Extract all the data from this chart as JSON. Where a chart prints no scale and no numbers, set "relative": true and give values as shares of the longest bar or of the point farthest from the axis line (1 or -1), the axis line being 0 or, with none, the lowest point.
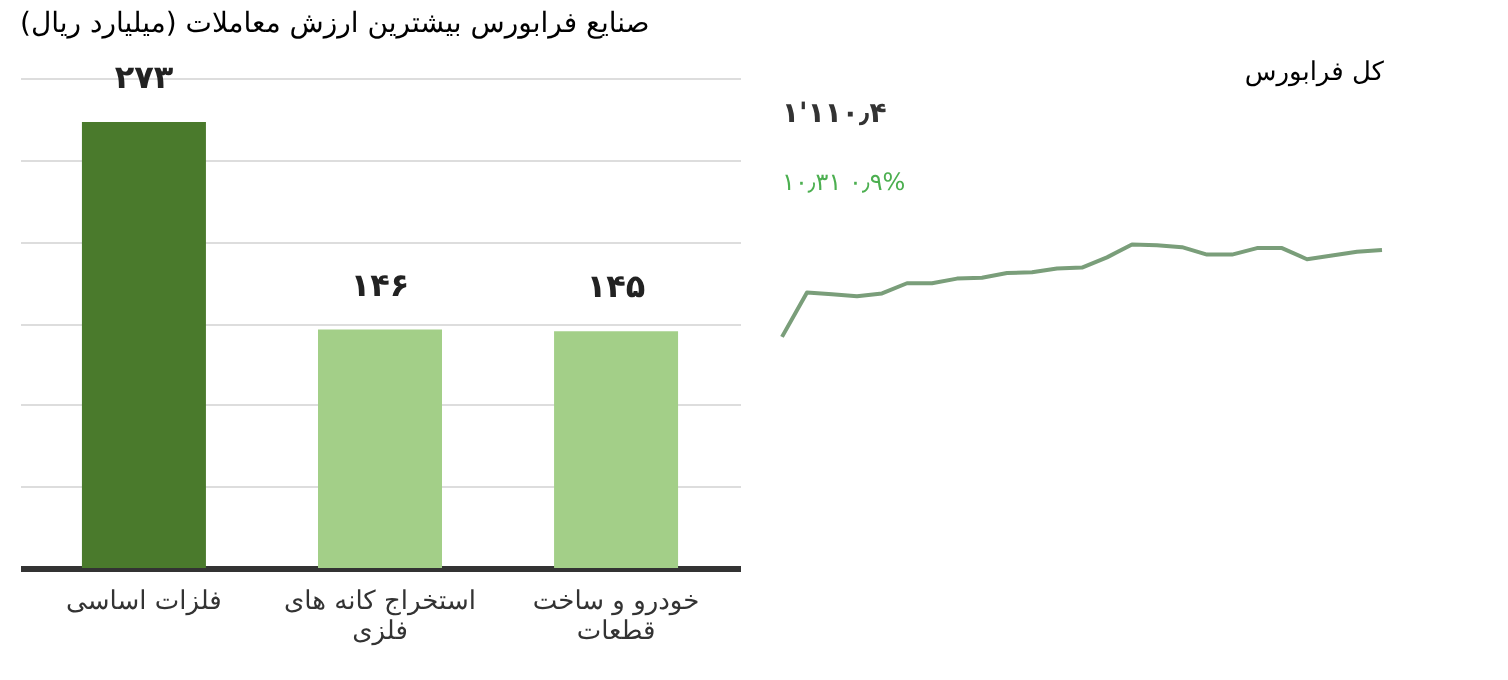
{
  "chart_data": [
    {
      "type": "bar",
      "title": "صنایع فرابورس بیشترین ارزش معاملات (میلیارد ریال)",
      "categories": [
        "فلزات اساسی",
        "استخراج کانه های فلزی",
        "خودرو و ساخت قطعات"
      ],
      "values": [
        273,
        146,
        145
      ],
      "colors": [
        "#4a7a2c",
        "#a3cf88",
        "#a3cf88"
      ],
      "value_labels": [
        "۲۷۳",
        "۱۴۶",
        "۱۴۵"
      ],
      "ylim": [
        0,
        300
      ],
      "yticks": [
        {
          "value": 0,
          "label": null
        },
        {
          "value": 50,
          "label": null
        },
        {
          "value": 100,
          "label": null
        },
        {
          "value": 150,
          "label": null
        },
        {
          "value": 200,
          "label": null
        },
        {
          "value": 250,
          "label": null
        },
        {
          "value": 300,
          "label": null
        }
      ],
      "grid": "y",
      "tick_labels": "x"
    },
    {
      "type": "line",
      "title": "کل فرابورس",
      "annotations": [
        "۱'۱۱۰٫۴",
        "۱۰٫۳۱ ۰٫۹%"
      ],
      "relative": true,
      "tick_labels": false,
      "categories": [
        null,
        null,
        null,
        null,
        null,
        null,
        null,
        null,
        null,
        null,
        null,
        null,
        null,
        null,
        null,
        null,
        null,
        null,
        null,
        null,
        null,
        null,
        null,
        null,
        null
      ],
      "series": [
        {
          "color": "#7a9e7a",
          "values": [
            0,
            0.48,
            0.46,
            0.44,
            0.47,
            0.58,
            0.58,
            0.63,
            0.64,
            0.69,
            0.7,
            0.74,
            0.75,
            0.86,
            1.0,
            0.99,
            0.97,
            0.89,
            0.89,
            0.96,
            0.96,
            0.84,
            0.88,
            0.92,
            0.94
          ]
        }
      ]
    }
  ]
}
